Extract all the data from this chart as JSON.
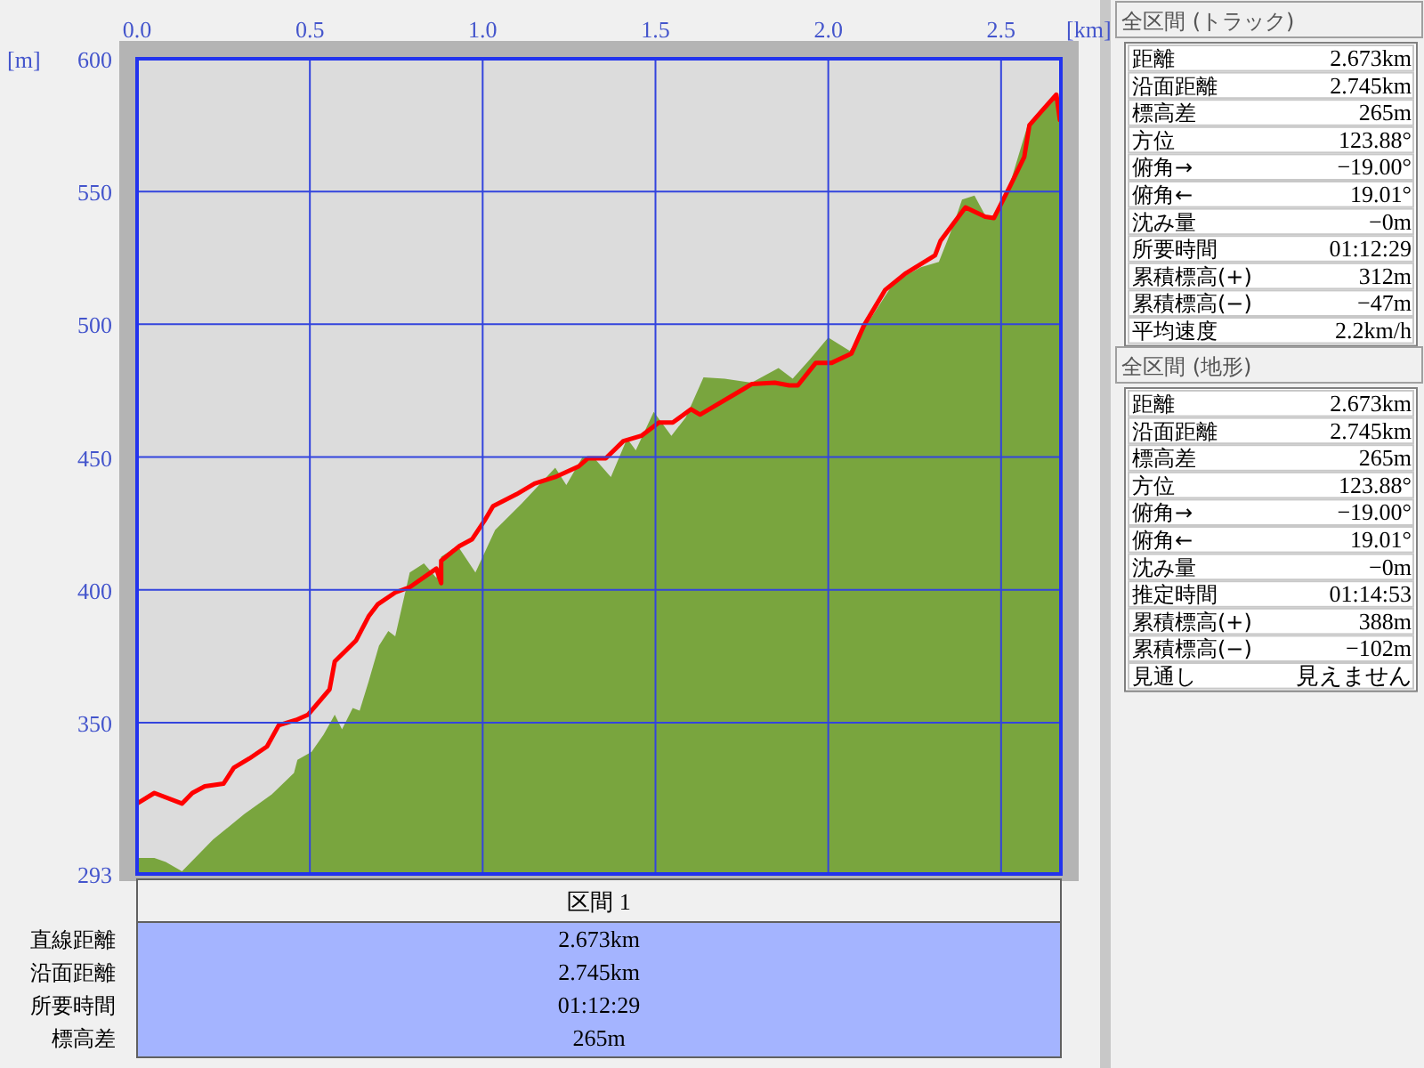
{
  "chart_data": [
    {
      "type": "area",
      "xlabel": "[km]",
      "ylabel": "[m]",
      "xlim": [
        0,
        2.673
      ],
      "ylim": [
        293,
        600
      ],
      "grid": true,
      "xticks": [
        {
          "value": 0,
          "label": "0.0"
        },
        0.5,
        {
          "value": 1,
          "label": "1.0"
        },
        1.5,
        {
          "value": 2,
          "label": "2.0"
        },
        2.5
      ],
      "yticks": [
        293,
        350,
        400,
        450,
        500,
        550,
        600
      ],
      "series": [
        {
          "type": "area",
          "color": "#79a53e",
          "x": [
            0,
            0.05,
            0.083,
            0.13,
            0.22,
            0.31,
            0.39,
            0.454,
            0.464,
            0.505,
            0.54,
            0.572,
            0.593,
            0.624,
            0.644,
            0.67,
            0.7,
            0.727,
            0.747,
            0.789,
            0.83,
            0.866,
            0.88,
            0.928,
            0.979,
            1.036,
            1.113,
            1.21,
            1.242,
            1.289,
            1.32,
            1.371,
            1.418,
            1.443,
            1.495,
            1.546,
            1.588,
            1.639,
            1.7,
            1.778,
            1.856,
            1.897,
            1.948,
            2.0,
            2.062,
            2.119,
            2.191,
            2.268,
            2.32,
            2.361,
            2.387,
            2.423,
            2.454,
            2.479,
            2.526,
            2.577,
            2.629,
            2.66,
            2.673
          ],
          "values": [
            299,
            299,
            297.5,
            294,
            306,
            315.5,
            323,
            331,
            336,
            339,
            345.5,
            353,
            347.5,
            355.5,
            354.5,
            365.5,
            379,
            384.5,
            382.5,
            406.5,
            410,
            404.5,
            412.5,
            416.5,
            406.5,
            422.5,
            432.5,
            446,
            439.5,
            450,
            450,
            442.5,
            457,
            452.5,
            467,
            458,
            465,
            480,
            479.5,
            478,
            483.5,
            479.5,
            487,
            495,
            490,
            501.5,
            516,
            521.5,
            523.5,
            537,
            547,
            548.5,
            541,
            540,
            553,
            575,
            583,
            585,
            583
          ]
        },
        {
          "type": "line",
          "color": "#ff0000",
          "x": [
            0,
            0.05,
            0.13,
            0.16,
            0.196,
            0.25,
            0.28,
            0.325,
            0.376,
            0.41,
            0.46,
            0.495,
            0.557,
            0.572,
            0.634,
            0.67,
            0.696,
            0.747,
            0.789,
            0.866,
            0.88,
            0.88,
            0.933,
            0.969,
            1.005,
            1.03,
            1.098,
            1.15,
            1.21,
            1.278,
            1.304,
            1.356,
            1.407,
            1.459,
            1.51,
            1.55,
            1.603,
            1.629,
            1.753,
            1.778,
            1.845,
            1.887,
            1.912,
            1.964,
            2.01,
            2.067,
            2.103,
            2.165,
            2.222,
            2.309,
            2.325,
            2.397,
            2.454,
            2.479,
            2.526,
            2.567,
            2.582,
            2.619,
            2.66,
            2.67
          ],
          "values": [
            319.5,
            323.5,
            319.5,
            323.5,
            326,
            327,
            333,
            336.5,
            341,
            349,
            351,
            353,
            362.5,
            373,
            381,
            390,
            394.5,
            399,
            401,
            408,
            402.5,
            411,
            416.5,
            419,
            426,
            431.5,
            436,
            440,
            442.5,
            446.5,
            449.5,
            449.5,
            456,
            458,
            463,
            463,
            468,
            466,
            475.5,
            477.5,
            478,
            477,
            477,
            485.5,
            485.5,
            489,
            499.5,
            513,
            519,
            526,
            531.5,
            544,
            540.5,
            540,
            552,
            563,
            575,
            580.5,
            586.5,
            577
          ]
        }
      ]
    },
    {
      "type": "other",
      "title": "全区間 (トラック)",
      "annotations": [
        "距離",
        "2.673km",
        "沿面距離",
        "2.745km",
        "標高差",
        "265m",
        "方位",
        "123.88°",
        "俯角→",
        "−19.00°",
        "俯角←",
        "19.01°",
        "沈み量",
        "−0m",
        "所要時間",
        "01:12:29",
        "累積標高(+)",
        "312m",
        "累積標高(−)",
        "−47m",
        "平均速度",
        "2.2km/h"
      ]
    },
    {
      "type": "other",
      "title": "全区間 (地形)",
      "annotations": [
        "距離",
        "2.673km",
        "沿面距離",
        "2.745km",
        "標高差",
        "265m",
        "方位",
        "123.88°",
        "俯角→",
        "−19.00°",
        "俯角←",
        "19.01°",
        "沈み量",
        "−0m",
        "推定時間",
        "01:14:53",
        "累積標高(+)",
        "388m",
        "累積標高(−)",
        "−102m",
        "見通し",
        "見えません"
      ]
    },
    {
      "type": "other",
      "title": "区間 1",
      "annotations": [
        "直線距離",
        "2.673km",
        "沿面距離",
        "2.745km",
        "所要時間",
        "01:12:29",
        "標高差",
        "265m"
      ]
    }
  ]
}
